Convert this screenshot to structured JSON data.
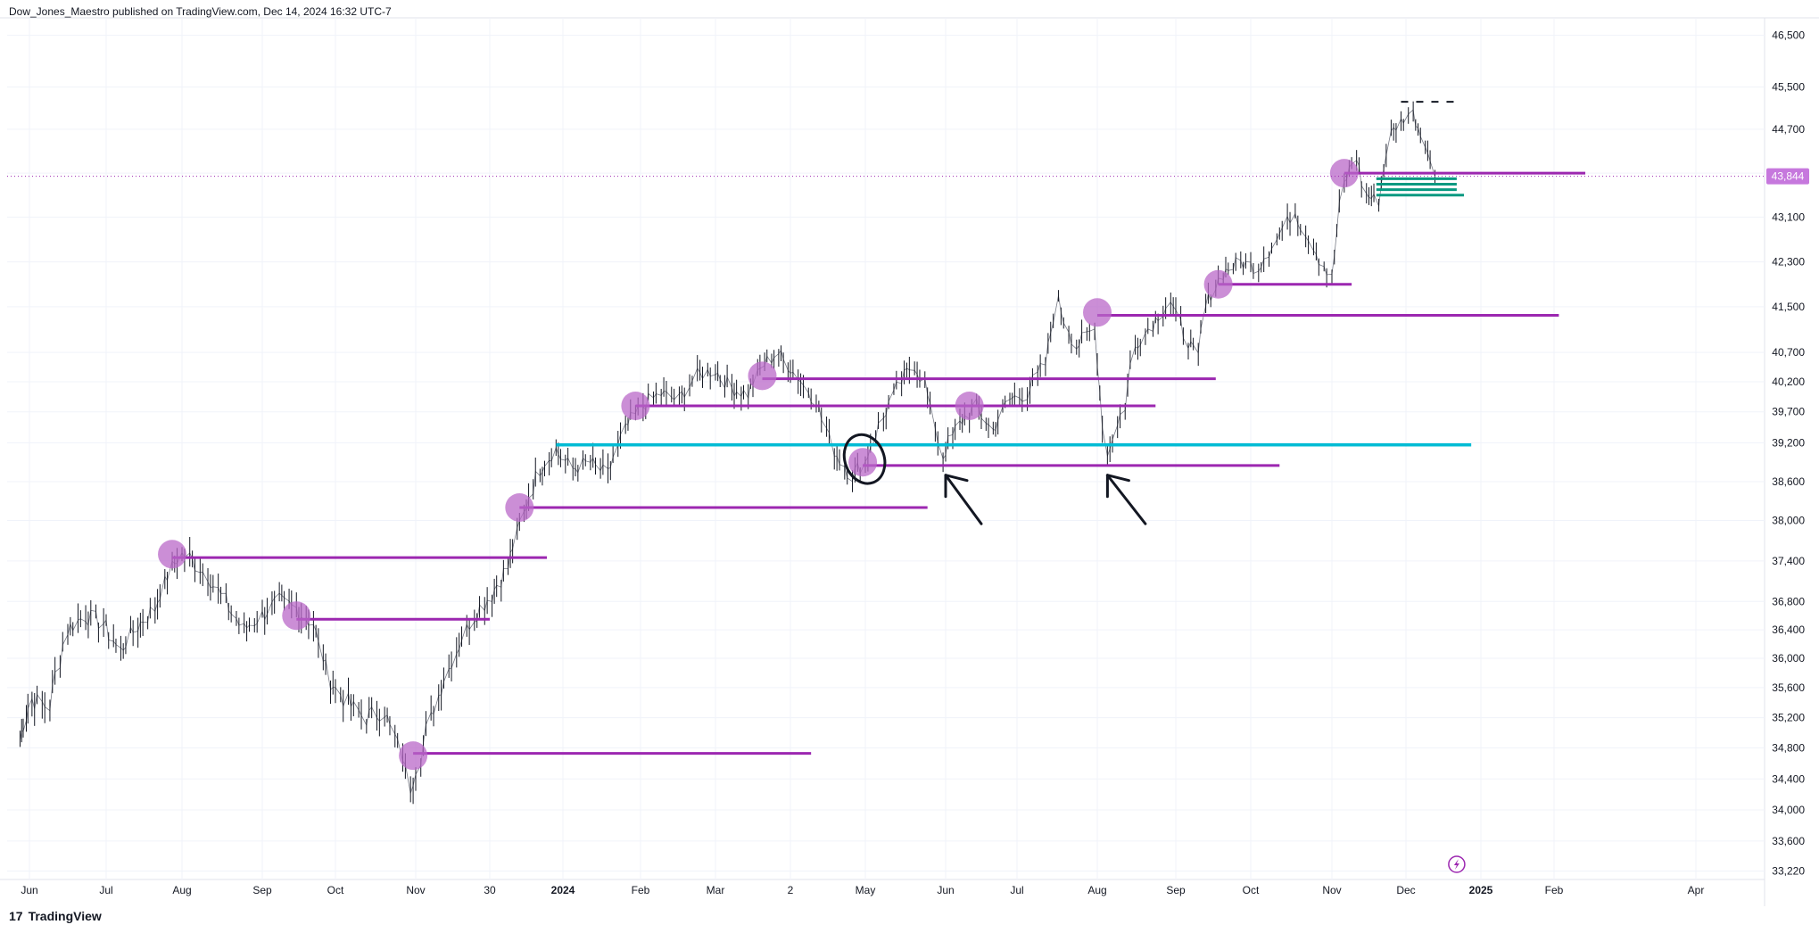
{
  "header": {
    "attribution": "Dow_Jones_Maestro published on TradingView.com, Dec 14, 2024 16:32 UTC-7"
  },
  "footer": {
    "brand_name": "TradingView",
    "logo_icon": "tradingview-logo-icon"
  },
  "chart_data": {
    "type": "candlestick",
    "ylim": [
      33000,
      46800
    ],
    "y_ticks": [
      "46,500",
      "45,500",
      "44,700",
      "43,900",
      "43,100",
      "42,300",
      "41,500",
      "40,700",
      "40,200",
      "39,700",
      "39,200",
      "38,600",
      "38,000",
      "37,400",
      "36,800",
      "36,400",
      "36,000",
      "35,600",
      "35,200",
      "34,800",
      "34,400",
      "34,000",
      "33,600",
      "33,220"
    ],
    "y_tick_values": [
      46500,
      45500,
      44700,
      43900,
      43100,
      42300,
      41500,
      40700,
      40200,
      39700,
      39200,
      38600,
      38000,
      37400,
      36800,
      36400,
      36000,
      35600,
      35200,
      34800,
      34400,
      34000,
      33600,
      33220
    ],
    "x_ticks": [
      {
        "label": "Jun",
        "date": "2023-06-01"
      },
      {
        "label": "Jul",
        "date": "2023-07-01"
      },
      {
        "label": "Aug",
        "date": "2023-08-01"
      },
      {
        "label": "Sep",
        "date": "2023-09-01"
      },
      {
        "label": "Oct",
        "date": "2023-10-01"
      },
      {
        "label": "Nov",
        "date": "2023-11-01"
      },
      {
        "label": "30",
        "date": "2023-11-30"
      },
      {
        "label": "2024",
        "date": "2024-01-01",
        "bold": true
      },
      {
        "label": "Feb",
        "date": "2024-02-01"
      },
      {
        "label": "Mar",
        "date": "2024-03-01"
      },
      {
        "label": "2",
        "date": "2024-04-02"
      },
      {
        "label": "May",
        "date": "2024-05-01"
      },
      {
        "label": "Jun",
        "date": "2024-06-01"
      },
      {
        "label": "Jul",
        "date": "2024-07-01"
      },
      {
        "label": "Aug",
        "date": "2024-08-01"
      },
      {
        "label": "Sep",
        "date": "2024-09-01"
      },
      {
        "label": "Oct",
        "date": "2024-10-01"
      },
      {
        "label": "Nov",
        "date": "2024-11-01"
      },
      {
        "label": "Dec",
        "date": "2024-12-01"
      },
      {
        "label": "2025",
        "date": "2025-01-01",
        "bold": true
      },
      {
        "label": "Feb",
        "date": "2025-02-01"
      },
      {
        "label": "Apr",
        "date": "2025-04-01"
      }
    ],
    "last_price": {
      "label": "43,844",
      "value": 43844,
      "color": "#c678dd"
    },
    "price_path": [
      {
        "date": "2023-05-26",
        "value": 34900
      },
      {
        "date": "2023-06-02",
        "value": 35450
      },
      {
        "date": "2023-06-09",
        "value": 35350
      },
      {
        "date": "2023-06-16",
        "value": 36400
      },
      {
        "date": "2023-06-23",
        "value": 36600
      },
      {
        "date": "2023-06-30",
        "value": 36500
      },
      {
        "date": "2023-07-07",
        "value": 36100
      },
      {
        "date": "2023-07-14",
        "value": 36450
      },
      {
        "date": "2023-07-21",
        "value": 36700
      },
      {
        "date": "2023-07-28",
        "value": 37300
      },
      {
        "date": "2023-08-01",
        "value": 37500
      },
      {
        "date": "2023-08-04",
        "value": 37450
      },
      {
        "date": "2023-08-11",
        "value": 37200
      },
      {
        "date": "2023-08-18",
        "value": 36800
      },
      {
        "date": "2023-08-25",
        "value": 36400
      },
      {
        "date": "2023-09-01",
        "value": 36600
      },
      {
        "date": "2023-09-08",
        "value": 36800
      },
      {
        "date": "2023-09-15",
        "value": 36700
      },
      {
        "date": "2023-09-22",
        "value": 36500
      },
      {
        "date": "2023-09-29",
        "value": 35700
      },
      {
        "date": "2023-10-06",
        "value": 35400
      },
      {
        "date": "2023-10-13",
        "value": 35200
      },
      {
        "date": "2023-10-20",
        "value": 35300
      },
      {
        "date": "2023-10-27",
        "value": 34700
      },
      {
        "date": "2023-10-30",
        "value": 34300
      },
      {
        "date": "2023-11-03",
        "value": 34700
      },
      {
        "date": "2023-11-10",
        "value": 35500
      },
      {
        "date": "2023-11-17",
        "value": 36100
      },
      {
        "date": "2023-11-24",
        "value": 36600
      },
      {
        "date": "2023-12-01",
        "value": 36900
      },
      {
        "date": "2023-12-08",
        "value": 37300
      },
      {
        "date": "2023-12-15",
        "value": 38100
      },
      {
        "date": "2023-12-22",
        "value": 38800
      },
      {
        "date": "2023-12-29",
        "value": 39100
      },
      {
        "date": "2024-01-05",
        "value": 38800
      },
      {
        "date": "2024-01-12",
        "value": 38900
      },
      {
        "date": "2024-01-19",
        "value": 38700
      },
      {
        "date": "2024-01-26",
        "value": 39400
      },
      {
        "date": "2024-02-02",
        "value": 39800
      },
      {
        "date": "2024-02-09",
        "value": 40000
      },
      {
        "date": "2024-02-16",
        "value": 39900
      },
      {
        "date": "2024-02-23",
        "value": 40300
      },
      {
        "date": "2024-03-01",
        "value": 40400
      },
      {
        "date": "2024-03-08",
        "value": 40100
      },
      {
        "date": "2024-03-15",
        "value": 40000
      },
      {
        "date": "2024-03-22",
        "value": 40500
      },
      {
        "date": "2024-03-28",
        "value": 40700
      },
      {
        "date": "2024-04-05",
        "value": 40300
      },
      {
        "date": "2024-04-12",
        "value": 39900
      },
      {
        "date": "2024-04-19",
        "value": 39100
      },
      {
        "date": "2024-04-26",
        "value": 38700
      },
      {
        "date": "2024-05-01",
        "value": 38900
      },
      {
        "date": "2024-05-08",
        "value": 39600
      },
      {
        "date": "2024-05-15",
        "value": 40200
      },
      {
        "date": "2024-05-20",
        "value": 40500
      },
      {
        "date": "2024-05-24",
        "value": 40200
      },
      {
        "date": "2024-05-31",
        "value": 39000
      },
      {
        "date": "2024-06-07",
        "value": 39500
      },
      {
        "date": "2024-06-14",
        "value": 39800
      },
      {
        "date": "2024-06-21",
        "value": 39400
      },
      {
        "date": "2024-06-28",
        "value": 39900
      },
      {
        "date": "2024-07-05",
        "value": 40000
      },
      {
        "date": "2024-07-12",
        "value": 40500
      },
      {
        "date": "2024-07-17",
        "value": 41600
      },
      {
        "date": "2024-07-24",
        "value": 40800
      },
      {
        "date": "2024-07-31",
        "value": 41100
      },
      {
        "date": "2024-08-05",
        "value": 39000
      },
      {
        "date": "2024-08-12",
        "value": 39800
      },
      {
        "date": "2024-08-16",
        "value": 40800
      },
      {
        "date": "2024-08-23",
        "value": 41200
      },
      {
        "date": "2024-08-30",
        "value": 41600
      },
      {
        "date": "2024-09-06",
        "value": 40900
      },
      {
        "date": "2024-09-10",
        "value": 40600
      },
      {
        "date": "2024-09-13",
        "value": 41500
      },
      {
        "date": "2024-09-20",
        "value": 42100
      },
      {
        "date": "2024-09-27",
        "value": 42300
      },
      {
        "date": "2024-10-04",
        "value": 42200
      },
      {
        "date": "2024-10-11",
        "value": 42700
      },
      {
        "date": "2024-10-18",
        "value": 43200
      },
      {
        "date": "2024-10-25",
        "value": 42600
      },
      {
        "date": "2024-11-01",
        "value": 42000
      },
      {
        "date": "2024-11-06",
        "value": 43700
      },
      {
        "date": "2024-11-11",
        "value": 44200
      },
      {
        "date": "2024-11-15",
        "value": 43500
      },
      {
        "date": "2024-11-20",
        "value": 43400
      },
      {
        "date": "2024-11-25",
        "value": 44600
      },
      {
        "date": "2024-12-02",
        "value": 45000
      },
      {
        "date": "2024-12-04",
        "value": 45000
      },
      {
        "date": "2024-12-09",
        "value": 44500
      },
      {
        "date": "2024-12-13",
        "value": 43844
      }
    ],
    "circles": [
      {
        "date": "2023-07-28",
        "value": 37500
      },
      {
        "date": "2023-09-15",
        "value": 36600
      },
      {
        "date": "2023-10-31",
        "value": 34700
      },
      {
        "date": "2023-12-13",
        "value": 38200
      },
      {
        "date": "2024-01-30",
        "value": 39800
      },
      {
        "date": "2024-03-21",
        "value": 40300
      },
      {
        "date": "2024-04-30",
        "value": 38900
      },
      {
        "date": "2024-06-11",
        "value": 39800
      },
      {
        "date": "2024-08-01",
        "value": 41400
      },
      {
        "date": "2024-09-18",
        "value": 41900
      },
      {
        "date": "2024-11-06",
        "value": 43900
      }
    ],
    "level_lines": [
      {
        "value": 37450,
        "from": "2023-07-28",
        "to": "2023-12-25",
        "color": "#9c27b0"
      },
      {
        "value": 36550,
        "from": "2023-09-15",
        "to": "2023-11-30",
        "color": "#9c27b0"
      },
      {
        "value": 34730,
        "from": "2023-10-31",
        "to": "2024-04-10",
        "color": "#9c27b0"
      },
      {
        "value": 38200,
        "from": "2023-12-13",
        "to": "2024-05-25",
        "color": "#9c27b0"
      },
      {
        "value": 39800,
        "from": "2024-01-30",
        "to": "2024-08-24",
        "color": "#9c27b0"
      },
      {
        "value": 40250,
        "from": "2024-03-21",
        "to": "2024-09-17",
        "color": "#9c27b0"
      },
      {
        "value": 38850,
        "from": "2024-04-30",
        "to": "2024-10-12",
        "color": "#9c27b0"
      },
      {
        "value": 41350,
        "from": "2024-08-01",
        "to": "2025-02-03",
        "color": "#9c27b0"
      },
      {
        "value": 41900,
        "from": "2024-09-18",
        "to": "2024-11-09",
        "color": "#9c27b0"
      },
      {
        "value": 43900,
        "from": "2024-11-06",
        "to": "2025-02-14",
        "color": "#9c27b0"
      },
      {
        "value": 39170,
        "from": "2023-12-29",
        "to": "2024-12-28",
        "color": "#00bcd4"
      }
    ],
    "zone_lines": [
      {
        "value": 43800,
        "from": "2024-11-19",
        "to": "2024-12-22"
      },
      {
        "value": 43700,
        "from": "2024-11-19",
        "to": "2024-12-22"
      },
      {
        "value": 43600,
        "from": "2024-11-19",
        "to": "2024-12-22"
      },
      {
        "value": 43500,
        "from": "2024-11-19",
        "to": "2024-12-25"
      }
    ],
    "dashed_line": {
      "value": 45220,
      "from": "2024-11-29",
      "to": "2024-12-24"
    },
    "arrows": [
      {
        "date": "2024-06-01",
        "value": 38700,
        "to_date": "2024-06-16",
        "to_value": 37950
      },
      {
        "date": "2024-08-05",
        "value": 38700,
        "to_date": "2024-08-20",
        "to_value": 37950
      }
    ],
    "ellipse": {
      "date": "2024-04-30",
      "value": 38950
    },
    "flash_icon": "lightning-icon"
  }
}
